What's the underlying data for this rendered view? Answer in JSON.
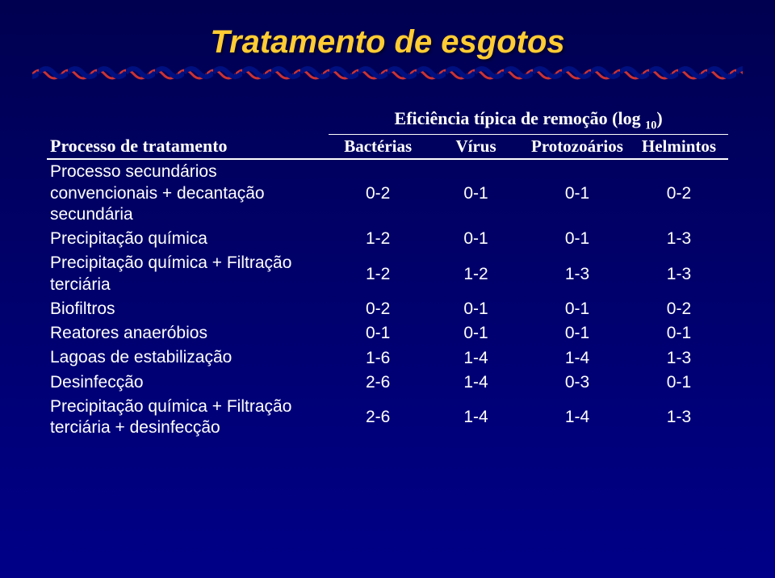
{
  "title": "Tratamento de esgotos",
  "headers": {
    "process": "Processo de tratamento",
    "efficiency": "Eficiência típica de remoção (log ",
    "efficiency_sub": "10",
    "efficiency_close": ")",
    "bacteria": "Bactérias",
    "virus": "Vírus",
    "protozoa": "Protozoários",
    "helminths": "Helmintos"
  },
  "rows": [
    {
      "process": "Processo secundários convencionais + decantação secundária",
      "v": [
        "0-2",
        "0-1",
        "0-1",
        "0-2"
      ]
    },
    {
      "process": "Precipitação química",
      "v": [
        "1-2",
        "0-1",
        "0-1",
        "1-3"
      ]
    },
    {
      "process": "Precipitação química + Filtração terciária",
      "v": [
        "1-2",
        "1-2",
        "1-3",
        "1-3"
      ]
    },
    {
      "process": "Biofiltros",
      "v": [
        "0-2",
        "0-1",
        "0-1",
        "0-2"
      ]
    },
    {
      "process": "Reatores anaeróbios",
      "v": [
        "0-1",
        "0-1",
        "0-1",
        "0-1"
      ]
    },
    {
      "process": "Lagoas de estabilização",
      "v": [
        "1-6",
        "1-4",
        "1-4",
        "1-3"
      ]
    },
    {
      "process": "Desinfecção",
      "v": [
        "2-6",
        "1-4",
        "0-3",
        "0-1"
      ]
    },
    {
      "process": "Precipitação química + Filtração terciária + desinfecção",
      "v": [
        "2-6",
        "1-4",
        "1-4",
        "1-3"
      ]
    }
  ],
  "style": {
    "title_color": "#ffcc33",
    "text_color": "#ffffff",
    "bg_top": "#000050",
    "bg_bottom": "#000088",
    "wave_back": "#cc3333",
    "wave_front": "#001080",
    "col_widths_pct": [
      42,
      14.5,
      14.5,
      14.5,
      14.5
    ]
  }
}
